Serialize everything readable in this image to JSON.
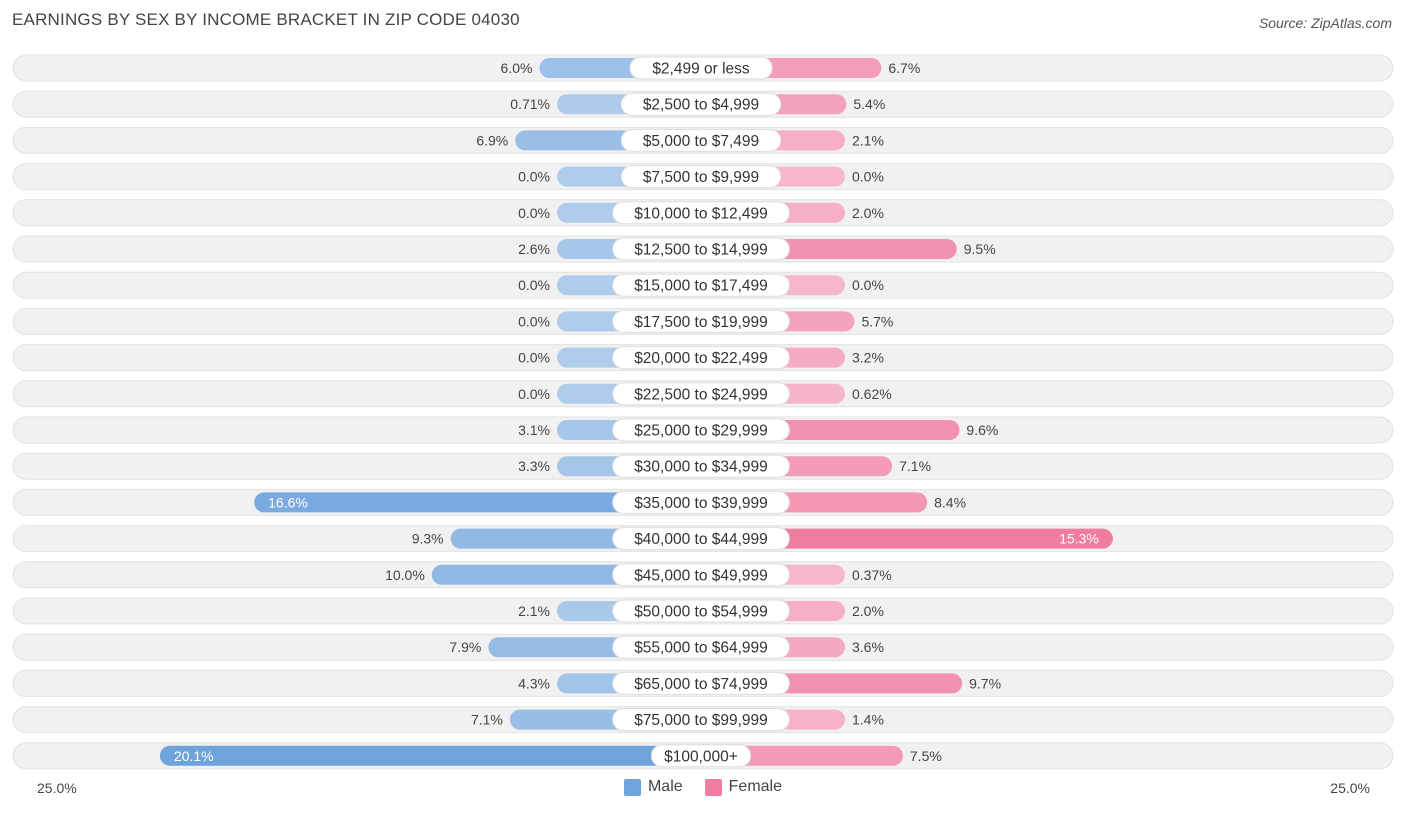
{
  "title": "EARNINGS BY SEX BY INCOME BRACKET IN ZIP CODE 04030",
  "source": "Source: ZipAtlas.com",
  "axis": {
    "left_label": "25.0%",
    "right_label": "25.0%"
  },
  "legend": {
    "male_label": "Male",
    "female_label": "Female",
    "male_color": "#6fa3dc",
    "female_color": "#f07ca0"
  },
  "chart_data": {
    "type": "bar",
    "orientation": "horizontal-diverging",
    "title": "EARNINGS BY SEX BY INCOME BRACKET IN ZIP CODE 04030",
    "xlim": [
      -25.0,
      25.0
    ],
    "unit": "%",
    "categories": [
      "$2,499 or less",
      "$2,500 to $4,999",
      "$5,000 to $7,499",
      "$7,500 to $9,999",
      "$10,000 to $12,499",
      "$12,500 to $14,999",
      "$15,000 to $17,499",
      "$17,500 to $19,999",
      "$20,000 to $22,499",
      "$22,500 to $24,999",
      "$25,000 to $29,999",
      "$30,000 to $34,999",
      "$35,000 to $39,999",
      "$40,000 to $44,999",
      "$45,000 to $49,999",
      "$50,000 to $54,999",
      "$55,000 to $64,999",
      "$65,000 to $74,999",
      "$75,000 to $99,999",
      "$100,000+"
    ],
    "series": [
      {
        "name": "Male",
        "values": [
          6.0,
          0.71,
          6.9,
          0.0,
          0.0,
          2.6,
          0.0,
          0.0,
          0.0,
          0.0,
          3.1,
          3.3,
          16.6,
          9.3,
          10.0,
          2.1,
          7.9,
          4.3,
          7.1,
          20.1
        ],
        "labels": [
          "6.0%",
          "0.71%",
          "6.9%",
          "0.0%",
          "0.0%",
          "2.6%",
          "0.0%",
          "0.0%",
          "0.0%",
          "0.0%",
          "3.1%",
          "3.3%",
          "16.6%",
          "9.3%",
          "10.0%",
          "2.1%",
          "7.9%",
          "4.3%",
          "7.1%",
          "20.1%"
        ]
      },
      {
        "name": "Female",
        "values": [
          6.7,
          5.4,
          2.1,
          0.0,
          2.0,
          9.5,
          0.0,
          5.7,
          3.2,
          0.62,
          9.6,
          7.1,
          8.4,
          15.3,
          0.37,
          2.0,
          3.6,
          9.7,
          1.4,
          7.5
        ],
        "labels": [
          "6.7%",
          "5.4%",
          "2.1%",
          "0.0%",
          "2.0%",
          "9.5%",
          "0.0%",
          "5.7%",
          "3.2%",
          "0.62%",
          "9.6%",
          "7.1%",
          "8.4%",
          "15.3%",
          "0.37%",
          "2.0%",
          "3.6%",
          "9.7%",
          "1.4%",
          "7.5%"
        ]
      }
    ]
  }
}
